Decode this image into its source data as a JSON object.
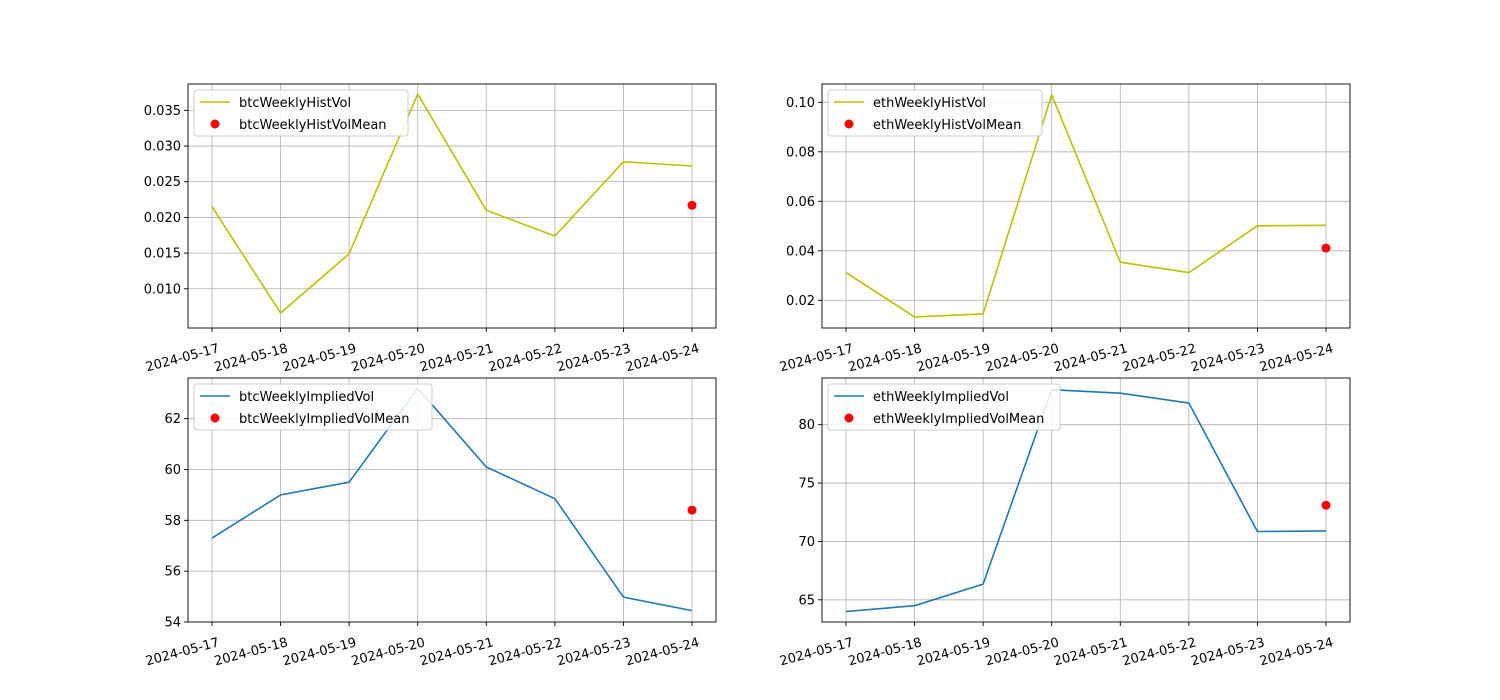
{
  "chart_data": [
    {
      "type": "line",
      "title": "",
      "xlabel": "",
      "ylabel": "",
      "x": [
        "2024-05-17",
        "2024-05-18",
        "2024-05-19",
        "2024-05-20",
        "2024-05-21",
        "2024-05-22",
        "2024-05-23",
        "2024-05-24"
      ],
      "ylim": [
        0.0045,
        0.0387
      ],
      "yticks": [
        0.01,
        0.015,
        0.02,
        0.025,
        0.03,
        0.035
      ],
      "ytick_labels": [
        "0.010",
        "0.015",
        "0.020",
        "0.025",
        "0.030",
        "0.035"
      ],
      "grid": true,
      "legend_position": "upper left",
      "series": [
        {
          "name": "btcWeeklyHistVol",
          "kind": "line",
          "color": "#bfbf00",
          "values": [
            0.0215,
            0.0066,
            0.0149,
            0.0373,
            0.021,
            0.0174,
            0.0278,
            0.0272
          ]
        }
      ],
      "mean_point": {
        "name": "btcWeeklyHistVolMean",
        "kind": "scatter",
        "color": "#ff0000",
        "x": "2024-05-24",
        "value": 0.0217
      }
    },
    {
      "type": "line",
      "title": "",
      "xlabel": "",
      "ylabel": "",
      "x": [
        "2024-05-17",
        "2024-05-18",
        "2024-05-19",
        "2024-05-20",
        "2024-05-21",
        "2024-05-22",
        "2024-05-23",
        "2024-05-24"
      ],
      "ylim": [
        0.0088,
        0.1074
      ],
      "yticks": [
        0.02,
        0.04,
        0.06,
        0.08,
        0.1
      ],
      "ytick_labels": [
        "0.02",
        "0.04",
        "0.06",
        "0.08",
        "0.10"
      ],
      "grid": true,
      "legend_position": "upper left",
      "series": [
        {
          "name": "ethWeeklyHistVol",
          "kind": "line",
          "color": "#bfbf00",
          "values": [
            0.0312,
            0.0133,
            0.0145,
            0.103,
            0.0354,
            0.0312,
            0.0501,
            0.0503
          ]
        }
      ],
      "mean_point": {
        "name": "ethWeeklyHistVolMean",
        "kind": "scatter",
        "color": "#ff0000",
        "x": "2024-05-24",
        "value": 0.0411
      }
    },
    {
      "type": "line",
      "title": "",
      "xlabel": "",
      "ylabel": "",
      "x": [
        "2024-05-17",
        "2024-05-18",
        "2024-05-19",
        "2024-05-20",
        "2024-05-21",
        "2024-05-22",
        "2024-05-23",
        "2024-05-24"
      ],
      "ylim": [
        54.0,
        63.6
      ],
      "yticks": [
        54,
        56,
        58,
        60,
        62
      ],
      "ytick_labels": [
        "54",
        "56",
        "58",
        "60",
        "62"
      ],
      "grid": true,
      "legend_position": "upper left",
      "series": [
        {
          "name": "btcWeeklyImpliedVol",
          "kind": "line",
          "color": "#1f77b4",
          "values": [
            57.3,
            59.0,
            59.5,
            63.2,
            60.1,
            58.85,
            54.98,
            54.45
          ]
        }
      ],
      "mean_point": {
        "name": "btcWeeklyImpliedVolMean",
        "kind": "scatter",
        "color": "#ff0000",
        "x": "2024-05-24",
        "value": 58.4
      }
    },
    {
      "type": "line",
      "title": "",
      "xlabel": "",
      "ylabel": "",
      "x": [
        "2024-05-17",
        "2024-05-18",
        "2024-05-19",
        "2024-05-20",
        "2024-05-21",
        "2024-05-22",
        "2024-05-23",
        "2024-05-24"
      ],
      "ylim": [
        63.1,
        84.0
      ],
      "yticks": [
        65,
        70,
        75,
        80
      ],
      "ytick_labels": [
        "65",
        "70",
        "75",
        "80"
      ],
      "grid": true,
      "legend_position": "upper left",
      "series": [
        {
          "name": "ethWeeklyImpliedVol",
          "kind": "line",
          "color": "#1f77b4",
          "values": [
            64.0,
            64.5,
            66.35,
            83.0,
            82.7,
            81.85,
            70.85,
            70.9
          ]
        }
      ],
      "mean_point": {
        "name": "ethWeeklyImpliedVolMean",
        "kind": "scatter",
        "color": "#ff0000",
        "x": "2024-05-24",
        "value": 73.1
      }
    }
  ]
}
